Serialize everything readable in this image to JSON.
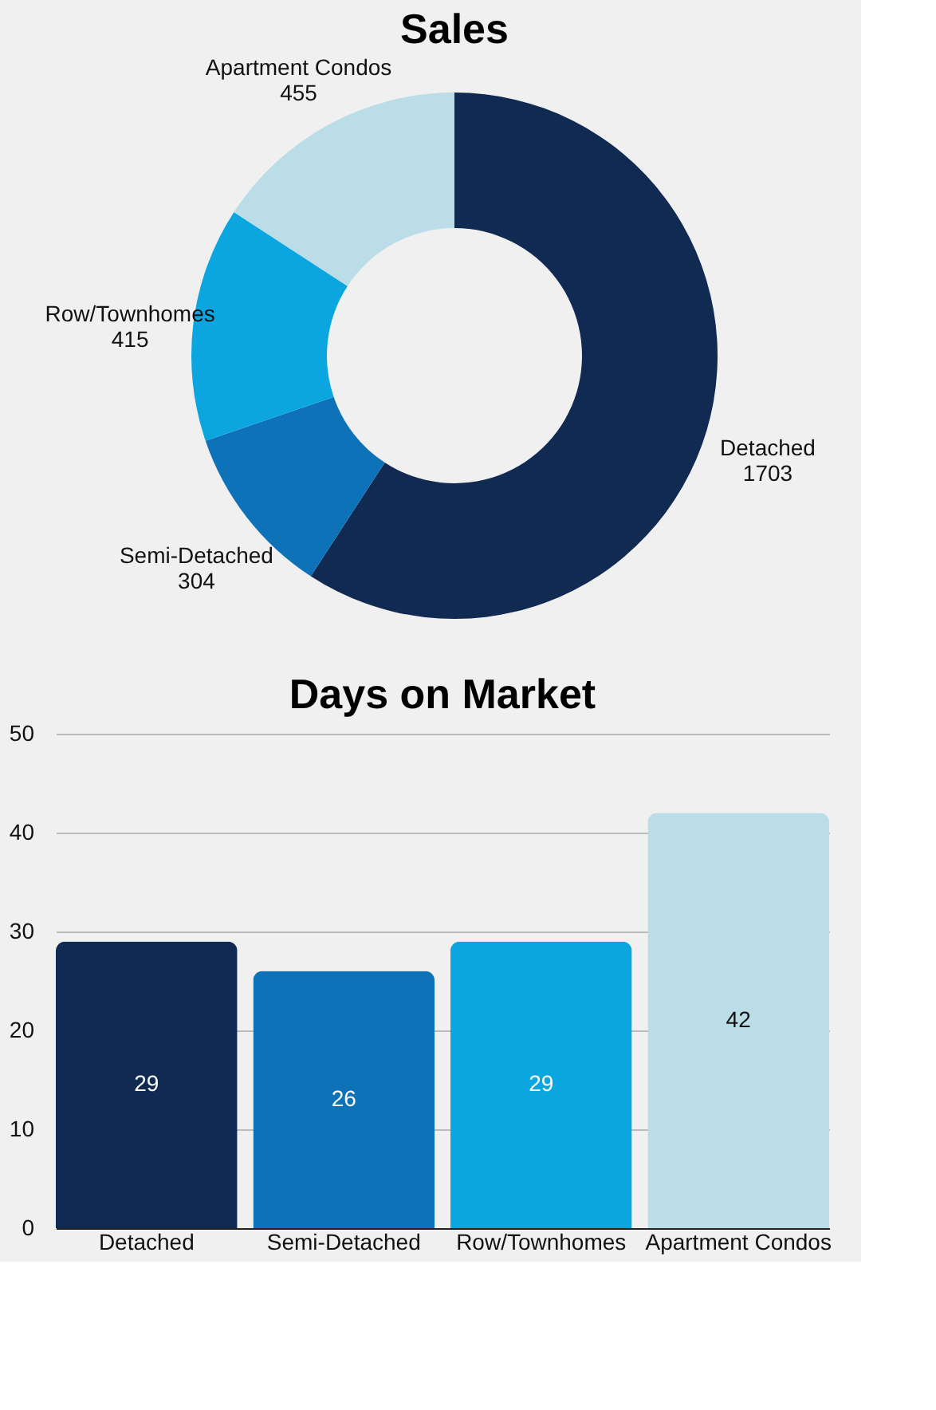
{
  "chart_data": [
    {
      "type": "donut",
      "title": "Sales",
      "categories": [
        "Detached",
        "Semi-Detached",
        "Row/Townhomes",
        "Apartment Condos"
      ],
      "values": [
        1703,
        304,
        415,
        455
      ],
      "colors": [
        "#112a52",
        "#0e72b8",
        "#0ba6df",
        "#badde7"
      ],
      "data_labels": true
    },
    {
      "type": "bar",
      "title": "Days on Market",
      "categories": [
        "Detached",
        "Semi-Detached",
        "Row/Townhomes",
        "Apartment Condos"
      ],
      "values": [
        29,
        26,
        29,
        42
      ],
      "colors": [
        "#112a52",
        "#0e72b8",
        "#0ba6df",
        "#badde7"
      ],
      "ylim": [
        0,
        50
      ],
      "yticks": [
        0,
        10,
        20,
        30,
        40,
        50
      ],
      "grid": "y",
      "data_labels": true
    }
  ]
}
